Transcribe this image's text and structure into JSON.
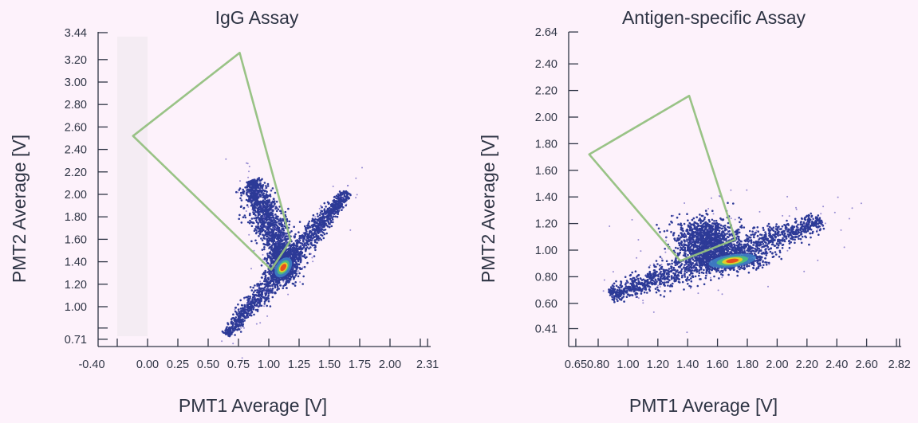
{
  "chart_data": [
    {
      "type": "scatter",
      "title": "IgG Assay",
      "xlabel": "PMT1 Average [V]",
      "ylabel": "PMT2 Average [V]",
      "xlim": [
        -0.4,
        2.31
      ],
      "ylim": [
        0.71,
        3.44
      ],
      "x_ticks": [
        {
          "value": -0.4,
          "label": "-0.40"
        },
        {
          "value": -0.25,
          "label": ""
        },
        {
          "value": 0.0,
          "label": "0.00"
        },
        {
          "value": 0.25,
          "label": "0.25"
        },
        {
          "value": 0.5,
          "label": "0.50"
        },
        {
          "value": 0.75,
          "label": "0.75"
        },
        {
          "value": 1.0,
          "label": "1.00"
        },
        {
          "value": 1.25,
          "label": "1.25"
        },
        {
          "value": 1.5,
          "label": "1.50"
        },
        {
          "value": 1.75,
          "label": "1.75"
        },
        {
          "value": 2.0,
          "label": "2.00"
        },
        {
          "value": 2.25,
          "label": ""
        },
        {
          "value": 2.31,
          "label": "2.31"
        }
      ],
      "y_ticks": [
        {
          "value": 0.71,
          "label": "0.71"
        },
        {
          "value": 0.81,
          "label": ""
        },
        {
          "value": 1.0,
          "label": "1.00"
        },
        {
          "value": 1.2,
          "label": "1.20"
        },
        {
          "value": 1.4,
          "label": "1.40"
        },
        {
          "value": 1.6,
          "label": "1.60"
        },
        {
          "value": 1.8,
          "label": "1.80"
        },
        {
          "value": 2.0,
          "label": "2.00"
        },
        {
          "value": 2.2,
          "label": "2.20"
        },
        {
          "value": 2.4,
          "label": "2.40"
        },
        {
          "value": 2.6,
          "label": "2.60"
        },
        {
          "value": 2.8,
          "label": "2.80"
        },
        {
          "value": 3.0,
          "label": "3.00"
        },
        {
          "value": 3.2,
          "label": "3.20"
        },
        {
          "value": 3.44,
          "label": "3.44"
        }
      ],
      "grid": false,
      "gate_polygon": [
        [
          0.76,
          3.26
        ],
        [
          -0.12,
          2.52
        ],
        [
          1.02,
          1.33
        ],
        [
          1.18,
          1.59
        ]
      ],
      "populations": [
        {
          "shape": "band",
          "from": [
            0.65,
            0.75
          ],
          "to": [
            1.65,
            2.02
          ],
          "spread": 0.035,
          "weight": 1.0
        },
        {
          "shape": "band",
          "from": [
            1.12,
            1.45
          ],
          "to": [
            0.85,
            2.12
          ],
          "spread": 0.055,
          "weight": 0.8
        },
        {
          "shape": "gauss",
          "center": [
            1.12,
            1.36
          ],
          "sd": [
            0.06,
            0.07
          ],
          "weight": 0.5
        }
      ],
      "hotspot": {
        "center": [
          1.12,
          1.35
        ]
      },
      "colors": {
        "points": "#2d3a97",
        "sparse": "#6a5fc0",
        "gate": "#93c07f",
        "hot": "#e8401c",
        "warm": "#f3d21f",
        "mid": "#4fc07a"
      }
    },
    {
      "type": "scatter",
      "title": "Antigen-specific Assay",
      "xlabel": "PMT1 Average [V]",
      "ylabel": "PMT2 Average [V]",
      "xlim": [
        0.65,
        2.82
      ],
      "ylim": [
        0.41,
        2.64
      ],
      "x_ticks": [
        {
          "value": 0.65,
          "label": "0.65"
        },
        {
          "value": 0.8,
          "label": "0.80"
        },
        {
          "value": 1.0,
          "label": "1.00"
        },
        {
          "value": 1.2,
          "label": "1.20"
        },
        {
          "value": 1.4,
          "label": "1.40"
        },
        {
          "value": 1.6,
          "label": "1.60"
        },
        {
          "value": 1.8,
          "label": "1.80"
        },
        {
          "value": 2.0,
          "label": "2.00"
        },
        {
          "value": 2.2,
          "label": "2.20"
        },
        {
          "value": 2.4,
          "label": "2.40"
        },
        {
          "value": 2.6,
          "label": "2.60"
        },
        {
          "value": 2.8,
          "label": ""
        },
        {
          "value": 2.82,
          "label": "2.82"
        }
      ],
      "y_ticks": [
        {
          "value": 0.41,
          "label": "0.41"
        },
        {
          "value": 0.6,
          "label": "0.60"
        },
        {
          "value": 0.8,
          "label": "0.80"
        },
        {
          "value": 1.0,
          "label": "1.00"
        },
        {
          "value": 1.2,
          "label": "1.20"
        },
        {
          "value": 1.4,
          "label": "1.40"
        },
        {
          "value": 1.6,
          "label": "1.60"
        },
        {
          "value": 1.8,
          "label": "1.80"
        },
        {
          "value": 2.0,
          "label": "2.00"
        },
        {
          "value": 2.2,
          "label": "2.20"
        },
        {
          "value": 2.4,
          "label": "2.40"
        },
        {
          "value": 2.64,
          "label": "2.64"
        }
      ],
      "grid": false,
      "gate_polygon": [
        [
          1.41,
          2.16
        ],
        [
          0.74,
          1.72
        ],
        [
          1.35,
          0.92
        ],
        [
          1.72,
          1.08
        ]
      ],
      "populations": [
        {
          "shape": "band",
          "from": [
            0.88,
            0.66
          ],
          "to": [
            2.3,
            1.22
          ],
          "spread": 0.045,
          "weight": 1.0
        },
        {
          "shape": "gauss",
          "center": [
            1.53,
            1.08
          ],
          "sd": [
            0.1,
            0.08
          ],
          "weight": 0.7
        },
        {
          "shape": "gauss",
          "center": [
            1.68,
            0.92
          ],
          "sd": [
            0.12,
            0.035
          ],
          "weight": 0.4
        }
      ],
      "hotspot": {
        "center": [
          1.7,
          0.92
        ]
      },
      "colors": {
        "points": "#2d3a97",
        "sparse": "#6a5fc0",
        "gate": "#93c07f",
        "hot": "#e8401c",
        "warm": "#f3d21f",
        "mid": "#4fc07a"
      }
    }
  ]
}
